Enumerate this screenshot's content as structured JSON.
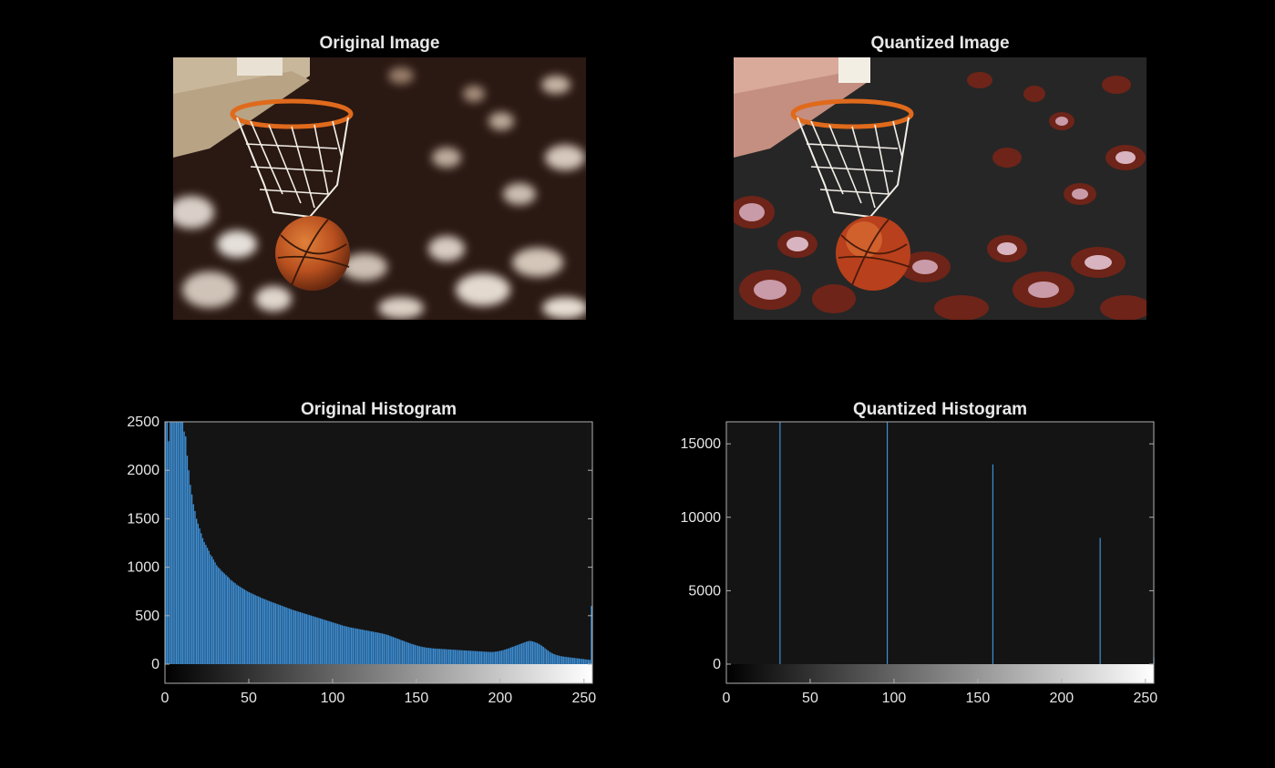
{
  "panels": {
    "original_image_title": "Original Image",
    "quantized_image_title": "Quantized Image",
    "original_histogram_title": "Original Histogram",
    "quantized_histogram_title": "Quantized Histogram"
  },
  "colors": {
    "figure_background": "#000000",
    "axes_background": "#141414",
    "axes_edge": "#b0b0b0",
    "bar_color": "#3d8fd6",
    "title_color": "#e8e8e8"
  },
  "chart_data": [
    {
      "type": "bar",
      "title": "Original Histogram",
      "xlabel": "",
      "ylabel": "",
      "xlim": [
        0,
        255
      ],
      "ylim": [
        0,
        2500
      ],
      "xticks": [
        0,
        50,
        100,
        150,
        200,
        250
      ],
      "yticks": [
        0,
        500,
        1000,
        1500,
        2000,
        2500
      ],
      "colorbar": "grayscale 0-255",
      "grid": false,
      "values": [
        2500,
        2500,
        2300,
        2500,
        2500,
        2500,
        2500,
        2500,
        2500,
        2500,
        2500,
        2500,
        2400,
        2350,
        2150,
        2000,
        1850,
        1750,
        1650,
        1580,
        1500,
        1450,
        1400,
        1350,
        1300,
        1260,
        1230,
        1200,
        1170,
        1130,
        1110,
        1080,
        1050,
        1020,
        1000,
        985,
        965,
        950,
        935,
        920,
        905,
        890,
        870,
        860,
        845,
        835,
        820,
        810,
        800,
        790,
        780,
        770,
        760,
        750,
        742,
        735,
        727,
        720,
        712,
        705,
        698,
        690,
        683,
        677,
        670,
        664,
        657,
        651,
        645,
        639,
        633,
        627,
        621,
        615,
        609,
        603,
        597,
        591,
        585,
        579,
        573,
        567,
        561,
        556,
        551,
        546,
        541,
        536,
        531,
        526,
        521,
        516,
        511,
        506,
        501,
        496,
        491,
        486,
        481,
        476,
        471,
        466,
        461,
        456,
        451,
        446,
        441,
        436,
        431,
        426,
        421,
        416,
        411,
        406,
        401,
        396,
        392,
        388,
        384,
        380,
        377,
        374,
        371,
        368,
        365,
        362,
        359,
        356,
        353,
        350,
        347,
        344,
        341,
        338,
        335,
        332,
        329,
        326,
        323,
        320,
        316,
        312,
        308,
        304,
        298,
        292,
        286,
        280,
        274,
        268,
        262,
        256,
        250,
        244,
        238,
        232,
        226,
        220,
        214,
        209,
        204,
        199,
        194,
        189,
        185,
        181,
        178,
        175,
        172,
        170,
        168,
        166,
        164,
        162,
        161,
        160,
        159,
        158,
        157,
        156,
        155,
        154,
        153,
        152,
        151,
        150,
        149,
        148,
        147,
        146,
        145,
        144,
        143,
        142,
        141,
        140,
        139,
        138,
        137,
        136,
        135,
        134,
        133,
        132,
        131,
        130,
        129,
        128,
        127,
        126,
        126,
        126,
        127,
        129,
        131,
        134,
        137,
        141,
        145,
        150,
        155,
        160,
        166,
        172,
        178,
        184,
        190,
        196,
        202,
        208,
        214,
        220,
        226,
        232,
        236,
        240,
        238,
        235,
        230,
        224,
        218,
        210,
        200,
        190,
        178,
        165,
        152,
        140,
        128,
        118,
        110,
        103,
        97,
        92,
        88,
        84,
        81,
        78,
        76,
        74,
        72,
        70,
        68,
        66,
        64,
        62,
        60,
        58,
        56,
        54,
        52,
        50,
        48,
        46,
        44,
        600
      ]
    },
    {
      "type": "bar",
      "title": "Quantized Histogram",
      "xlabel": "",
      "ylabel": "",
      "xlim": [
        0,
        255
      ],
      "ylim": [
        0,
        16500
      ],
      "xticks": [
        0,
        50,
        100,
        150,
        200,
        250
      ],
      "yticks": [
        0,
        5000,
        10000,
        15000
      ],
      "colorbar": "grayscale 0-255",
      "grid": false,
      "x": [
        32,
        96,
        159,
        223,
        255
      ],
      "values": [
        16500,
        16500,
        13600,
        8600,
        500
      ]
    }
  ]
}
